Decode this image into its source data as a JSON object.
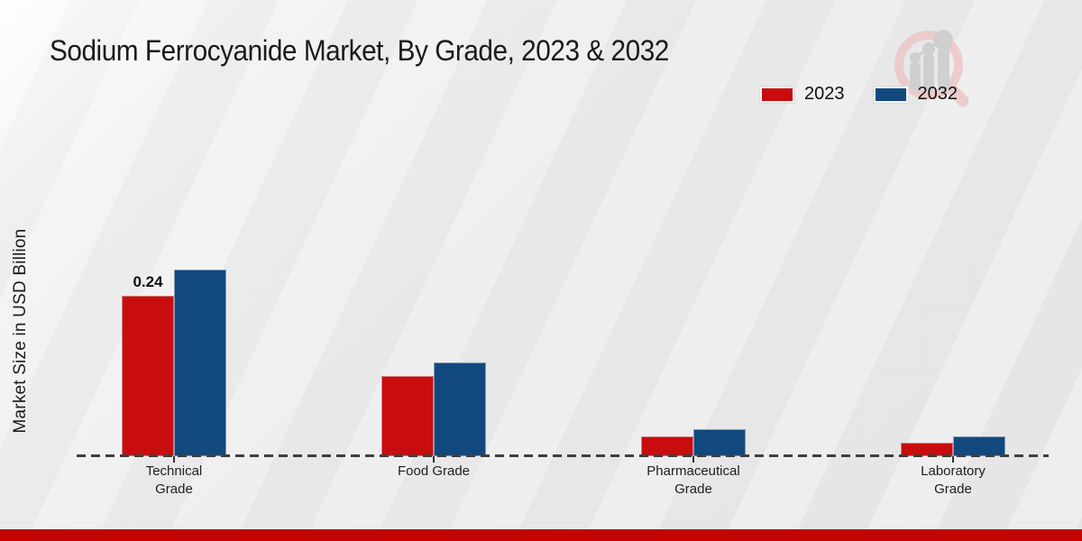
{
  "header": {
    "title": "Sodium Ferrocyanide Market, By Grade, 2023 & 2032"
  },
  "legend": {
    "items": [
      {
        "label": "2023",
        "color": "#c90d0e"
      },
      {
        "label": "2032",
        "color": "#11497f"
      }
    ]
  },
  "chart_data": {
    "type": "bar",
    "title": "Sodium Ferrocyanide Market, By Grade, 2023 & 2032",
    "xlabel": "",
    "ylabel": "Market Size in USD Billion",
    "categories": [
      "Technical Grade",
      "Food Grade",
      "Pharmaceutical Grade",
      "Laboratory Grade"
    ],
    "category_label_lines": [
      [
        "Technical",
        "Grade"
      ],
      [
        "Food Grade"
      ],
      [
        "Pharmaceutical",
        "Grade"
      ],
      [
        "Laboratory",
        "Grade"
      ]
    ],
    "series": [
      {
        "name": "2023",
        "color": "#c90d0e",
        "values": [
          0.24,
          0.12,
          0.03,
          0.02
        ]
      },
      {
        "name": "2032",
        "color": "#11497f",
        "values": [
          0.28,
          0.14,
          0.04,
          0.03
        ]
      }
    ],
    "annotations": [
      {
        "series": "2023",
        "category": "Technical Grade",
        "text": "0.24"
      }
    ],
    "ylim": [
      0,
      0.3
    ],
    "grid": false,
    "legend_position": "top-right",
    "baseline_style": "dashed",
    "y_axis_ticks_visible": false
  },
  "footer": {
    "stripe_color": "#c20404"
  },
  "watermark": {
    "name": "market-research-logo",
    "ring_color": "#ecc9c9",
    "bar_color": "#cdcdcd"
  }
}
